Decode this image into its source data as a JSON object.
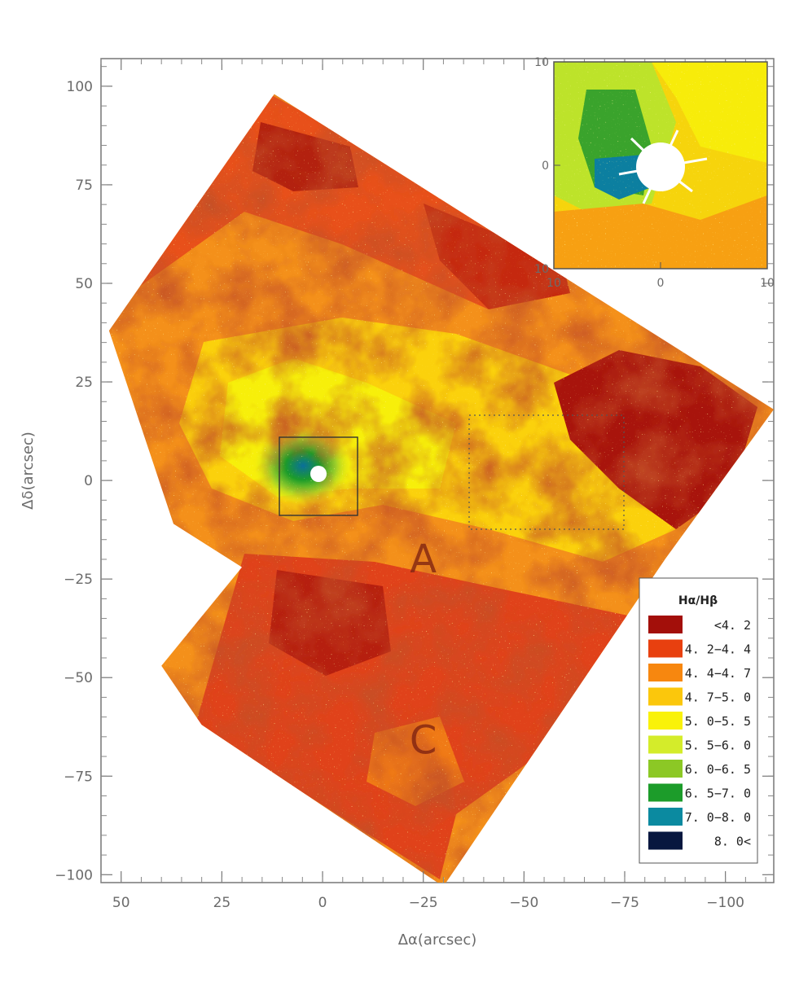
{
  "chart_data": {
    "type": "heatmap",
    "title": "",
    "xlabel": "Δα(arcsec)",
    "ylabel": "Δδ(arcsec)",
    "xlim": [
      55,
      -112
    ],
    "ylim": [
      -102,
      107
    ],
    "x_ticks": [
      50,
      25,
      0,
      -25,
      -50,
      -75,
      -100
    ],
    "x_tick_labels": [
      "50",
      "25",
      "0",
      "−25",
      "−50",
      "−75",
      "−100"
    ],
    "y_ticks": [
      100,
      75,
      50,
      25,
      0,
      -25,
      -50,
      -75,
      -100
    ],
    "y_tick_labels": [
      "100",
      "75",
      "50",
      "25",
      "0",
      "−25",
      "−50",
      "−75",
      "−100"
    ],
    "grid": false,
    "legend": {
      "title": "Hα/Hβ",
      "placement": "bottom-right",
      "bins": [
        {
          "label": "<4. 2",
          "color": "#a30f0a"
        },
        {
          "label": "4. 2−4. 4",
          "color": "#e8400f"
        },
        {
          "label": "4. 4−4. 7",
          "color": "#f7870f"
        },
        {
          "label": "4. 7−5. 0",
          "color": "#fbc70c"
        },
        {
          "label": "5. 0−5. 5",
          "color": "#f9f20a"
        },
        {
          "label": "5. 5−6. 0",
          "color": "#d4ec2a"
        },
        {
          "label": "6. 0−6. 5",
          "color": "#8cc825"
        },
        {
          "label": "6. 5−7. 0",
          "color": "#1c9c2a"
        },
        {
          "label": "7. 0−8. 0",
          "color": "#0b8aa0"
        },
        {
          "label": "8. 0<",
          "color": "#07173f"
        }
      ]
    },
    "annotations": [
      {
        "text": "A",
        "x": -25,
        "y": -20
      },
      {
        "text": "C",
        "x": -25,
        "y": -66
      }
    ],
    "inset": {
      "xlim": [
        10,
        -10
      ],
      "ylim": [
        -10,
        10
      ],
      "x_ticks": [
        10,
        0,
        -10
      ],
      "x_tick_labels": [
        "10",
        "0",
        "10"
      ],
      "y_ticks": [
        10,
        0,
        -10
      ],
      "y_tick_labels": [
        "10",
        "0",
        "10"
      ]
    }
  }
}
